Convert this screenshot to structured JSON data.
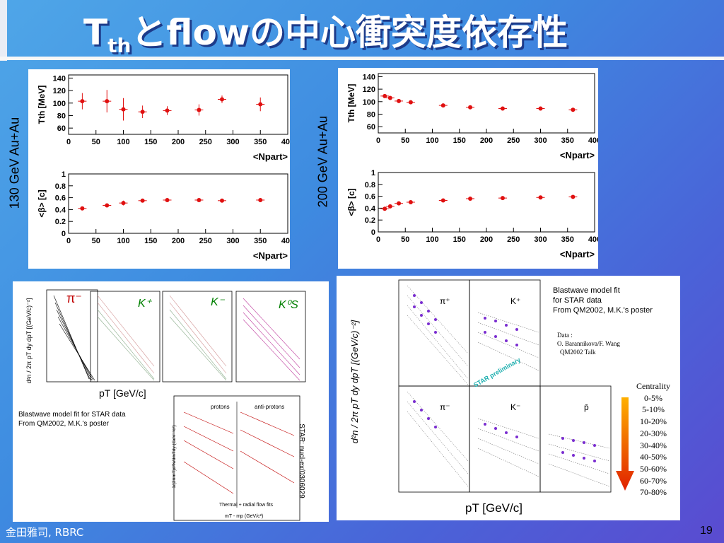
{
  "title": {
    "main": "T",
    "sub": "th",
    "rest": "とflowの中心衝突度依存性"
  },
  "footer": "金田雅司, RBRC",
  "page_number": "19",
  "labels": {
    "energy_130": "130 GeV Au+Au",
    "energy_200": "200 GeV Au+Au"
  },
  "bottom_left": {
    "pT_label": "pT [GeV/c]",
    "note1": "Blastwave model fit for STAR data",
    "note2": "From QM2002, M.K.'s poster",
    "star_ref": "STAR: nucl-ex/0306029",
    "particles": [
      "π⁻",
      "K⁺",
      "K⁻",
      "K⁰S"
    ],
    "inset_panels": [
      "protons",
      "anti-protons"
    ],
    "inset_legend": "Thermal + radial flow fits",
    "inset_ylabel": "1/(2πmT)d²N/dmTdy (GeV⁻²c²)",
    "inset_xlabel": "mT - mp (GeV/c²)",
    "ylabel": "d²n / 2π pT dy dpT [(GeV/c)⁻²]"
  },
  "bottom_right": {
    "note1": "Blastwave model fit",
    "note2": "for STAR data",
    "note3": "From QM2002, M.K.'s poster",
    "data1": "Data :",
    "data2": "O. Barannikova/F. Wang",
    "data3": "QM2002 Talk",
    "star_prelim": "STAR preliminary",
    "particles": [
      "π⁺",
      "K⁺",
      "π⁻",
      "K⁻",
      "p̄"
    ],
    "pT_label": "pT [GeV/c]",
    "centrality_title": "Centrality",
    "centralities": [
      "0-5%",
      "5-10%",
      "10-20%",
      "20-30%",
      "30-40%",
      "40-50%",
      "50-60%",
      "60-70%",
      "70-80%"
    ]
  },
  "chart_data": [
    {
      "type": "scatter",
      "panel": "130 GeV Tth",
      "x": [
        25,
        70,
        100,
        135,
        180,
        238,
        280,
        350
      ],
      "y": [
        103,
        103,
        90,
        86,
        88,
        89,
        106,
        98
      ],
      "yerr": [
        13,
        18,
        18,
        10,
        7,
        9,
        6,
        11
      ],
      "xlabel": "<Npart>",
      "ylabel": "Tth [MeV]",
      "xlim": [
        0,
        400
      ],
      "ylim": [
        50,
        145
      ],
      "xticks": [
        0,
        50,
        100,
        150,
        200,
        250,
        300,
        350,
        400
      ],
      "yticks": [
        60,
        80,
        100,
        120,
        140
      ]
    },
    {
      "type": "scatter",
      "panel": "130 GeV beta",
      "x": [
        25,
        70,
        100,
        135,
        180,
        238,
        280,
        350
      ],
      "y": [
        0.42,
        0.47,
        0.51,
        0.55,
        0.56,
        0.56,
        0.55,
        0.56
      ],
      "yerr": [
        0.02,
        0.03,
        0.04,
        0.02,
        0.02,
        0.02,
        0.02,
        0.02
      ],
      "xlabel": "<Npart>",
      "ylabel": "<β> [c]",
      "xlim": [
        0,
        400
      ],
      "ylim": [
        0,
        1
      ],
      "xticks": [
        0,
        50,
        100,
        150,
        200,
        250,
        300,
        350,
        400
      ],
      "yticks": [
        0,
        0.2,
        0.4,
        0.6,
        0.8,
        1
      ]
    },
    {
      "type": "scatter",
      "panel": "200 GeV Tth",
      "x": [
        12,
        22,
        38,
        60,
        120,
        170,
        230,
        300,
        360
      ],
      "y": [
        109,
        106,
        101,
        99,
        94,
        91,
        89,
        89,
        87
      ],
      "yerr": [
        2,
        2,
        2,
        2,
        2,
        2,
        2,
        2,
        2
      ],
      "xlabel": "<Npart>",
      "ylabel": "Tth [MeV]",
      "xlim": [
        0,
        400
      ],
      "ylim": [
        50,
        145
      ],
      "xticks": [
        0,
        50,
        100,
        150,
        200,
        250,
        300,
        350,
        400
      ],
      "yticks": [
        60,
        80,
        100,
        120,
        140
      ]
    },
    {
      "type": "scatter",
      "panel": "200 GeV beta",
      "x": [
        12,
        22,
        38,
        60,
        120,
        170,
        230,
        300,
        360
      ],
      "y": [
        0.39,
        0.43,
        0.48,
        0.5,
        0.53,
        0.56,
        0.57,
        0.58,
        0.59
      ],
      "yerr": [
        0.02,
        0.02,
        0.02,
        0.02,
        0.02,
        0.02,
        0.02,
        0.02,
        0.02
      ],
      "xlabel": "<Npart>",
      "ylabel": "<β> [c]",
      "xlim": [
        0,
        400
      ],
      "ylim": [
        0,
        1
      ],
      "xticks": [
        0,
        50,
        100,
        150,
        200,
        250,
        300,
        350,
        400
      ],
      "yticks": [
        0,
        0.2,
        0.4,
        0.6,
        0.8,
        1
      ]
    }
  ],
  "colors": {
    "marker": "#e01010",
    "spectra_point": "#6020c0",
    "spectra_point2": "#c040c0"
  }
}
